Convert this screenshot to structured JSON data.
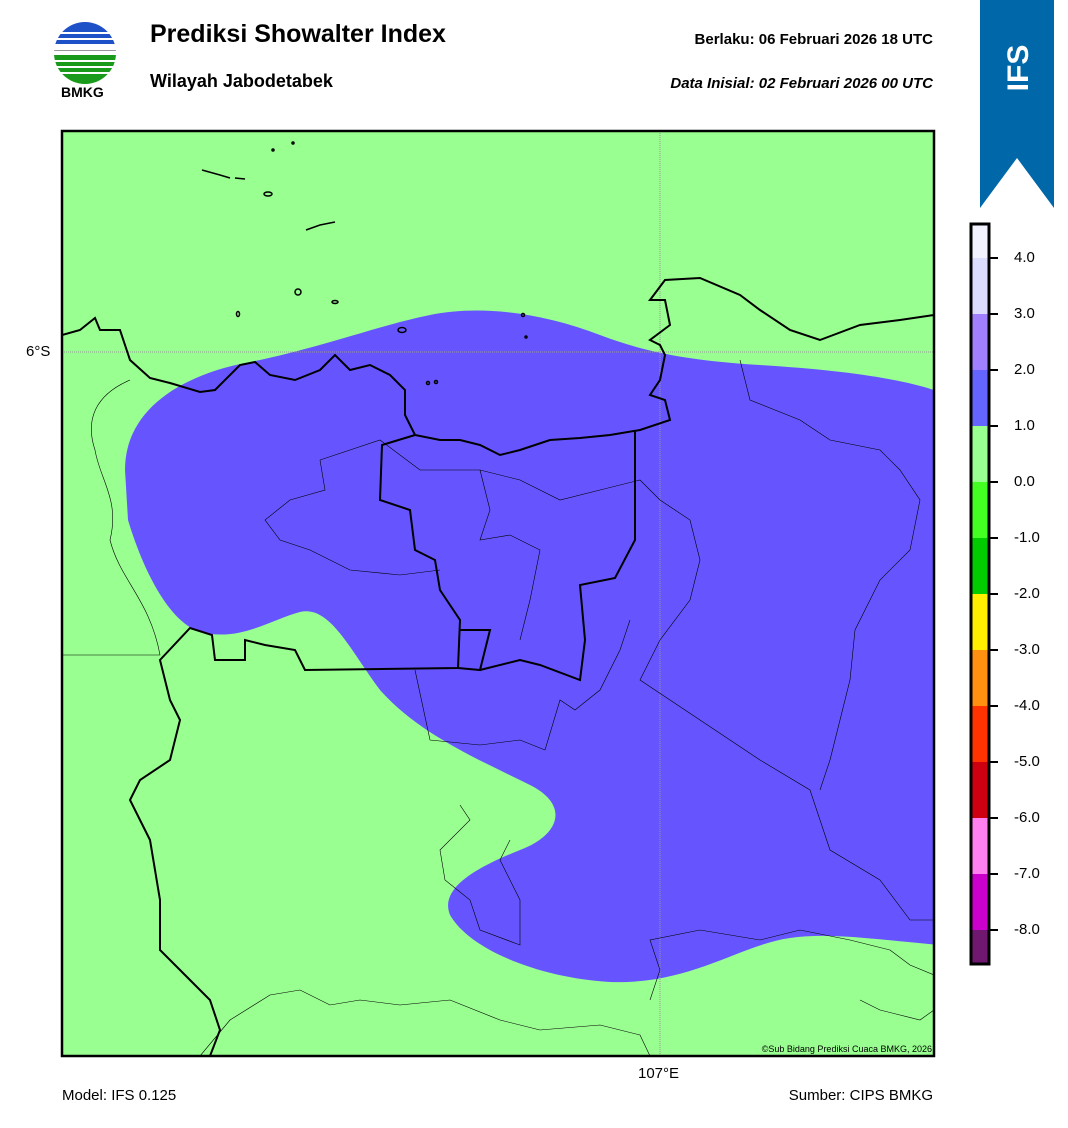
{
  "header": {
    "title": "Prediksi Showalter Index",
    "subtitle": "Wilayah Jabodetabek",
    "valid": "Berlaku:  06 Februari 2026 18 UTC",
    "initial": "Data Inisial:  02 Februari 2026 00 UTC",
    "logo_text": "BMKG",
    "ribbon_label": "IFS",
    "ribbon_color": "#0068a8"
  },
  "map": {
    "lat_label": "6°S",
    "lon_label": "107°E",
    "copyright": "©Sub Bidang Prediksi Cuaca BMKG, 2026",
    "background_color": "#99ff91",
    "field_color": "#6655ff"
  },
  "colorbar": {
    "ticks": [
      "4.0",
      "3.0",
      "2.0",
      "1.0",
      "0.0",
      "-1.0",
      "-2.0",
      "-3.0",
      "-4.0",
      "-5.0",
      "-6.0",
      "-7.0",
      "-8.0"
    ],
    "colors": [
      "#f2f2ff",
      "#dcdcff",
      "#a080ff",
      "#6464ff",
      "#99ff91",
      "#44ff22",
      "#00cc00",
      "#ffee00",
      "#ff9010",
      "#ff3300",
      "#cc0011",
      "#ff80ee",
      "#cc00cc",
      "#701870"
    ]
  },
  "footer": {
    "model": "Model: IFS 0.125",
    "source": "Sumber: CIPS BMKG"
  }
}
